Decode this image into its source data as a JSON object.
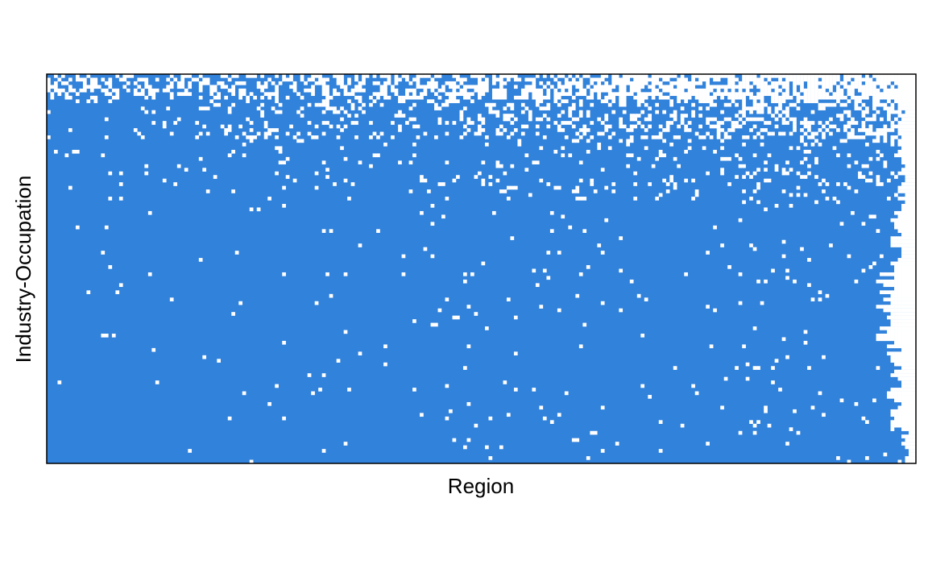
{
  "chart_data": {
    "type": "heatmap",
    "title": "",
    "xlabel": "Region",
    "ylabel": "Industry-Occupation",
    "x_tick_labels": [],
    "y_tick_labels": [],
    "legend": "none",
    "grid": false,
    "n_columns": 240,
    "n_rows": 108,
    "value_colors": {
      "present": "#3182db",
      "absent": "#ffffff"
    },
    "orientation": "columns sorted by increasing sparsity left-to-right; rows sorted by increasing density top-to-bottom",
    "column_extent_percent": [
      88,
      86,
      84,
      82,
      80,
      78,
      76,
      74,
      72,
      70,
      68,
      66
    ],
    "notable_empty_rows": [
      {
        "row_fraction": 0.02,
        "density": 0.55
      },
      {
        "row_fraction": 0.04,
        "density": 0.6
      },
      {
        "row_fraction": 0.13,
        "density": 0.92
      },
      {
        "row_fraction": 0.19,
        "density": 0.96
      },
      {
        "row_fraction": 0.2,
        "density": 0.97
      },
      {
        "row_fraction": 0.29,
        "density": 0.97
      },
      {
        "row_fraction": 0.41,
        "density": 0.985
      },
      {
        "row_fraction": 0.64,
        "density": 0.985
      },
      {
        "row_fraction": 0.67,
        "density": 0.985
      },
      {
        "row_fraction": 0.7,
        "density": 0.99
      }
    ]
  },
  "colors": {
    "fill": "#3182db",
    "background": "#ffffff",
    "frame": "#000000"
  }
}
